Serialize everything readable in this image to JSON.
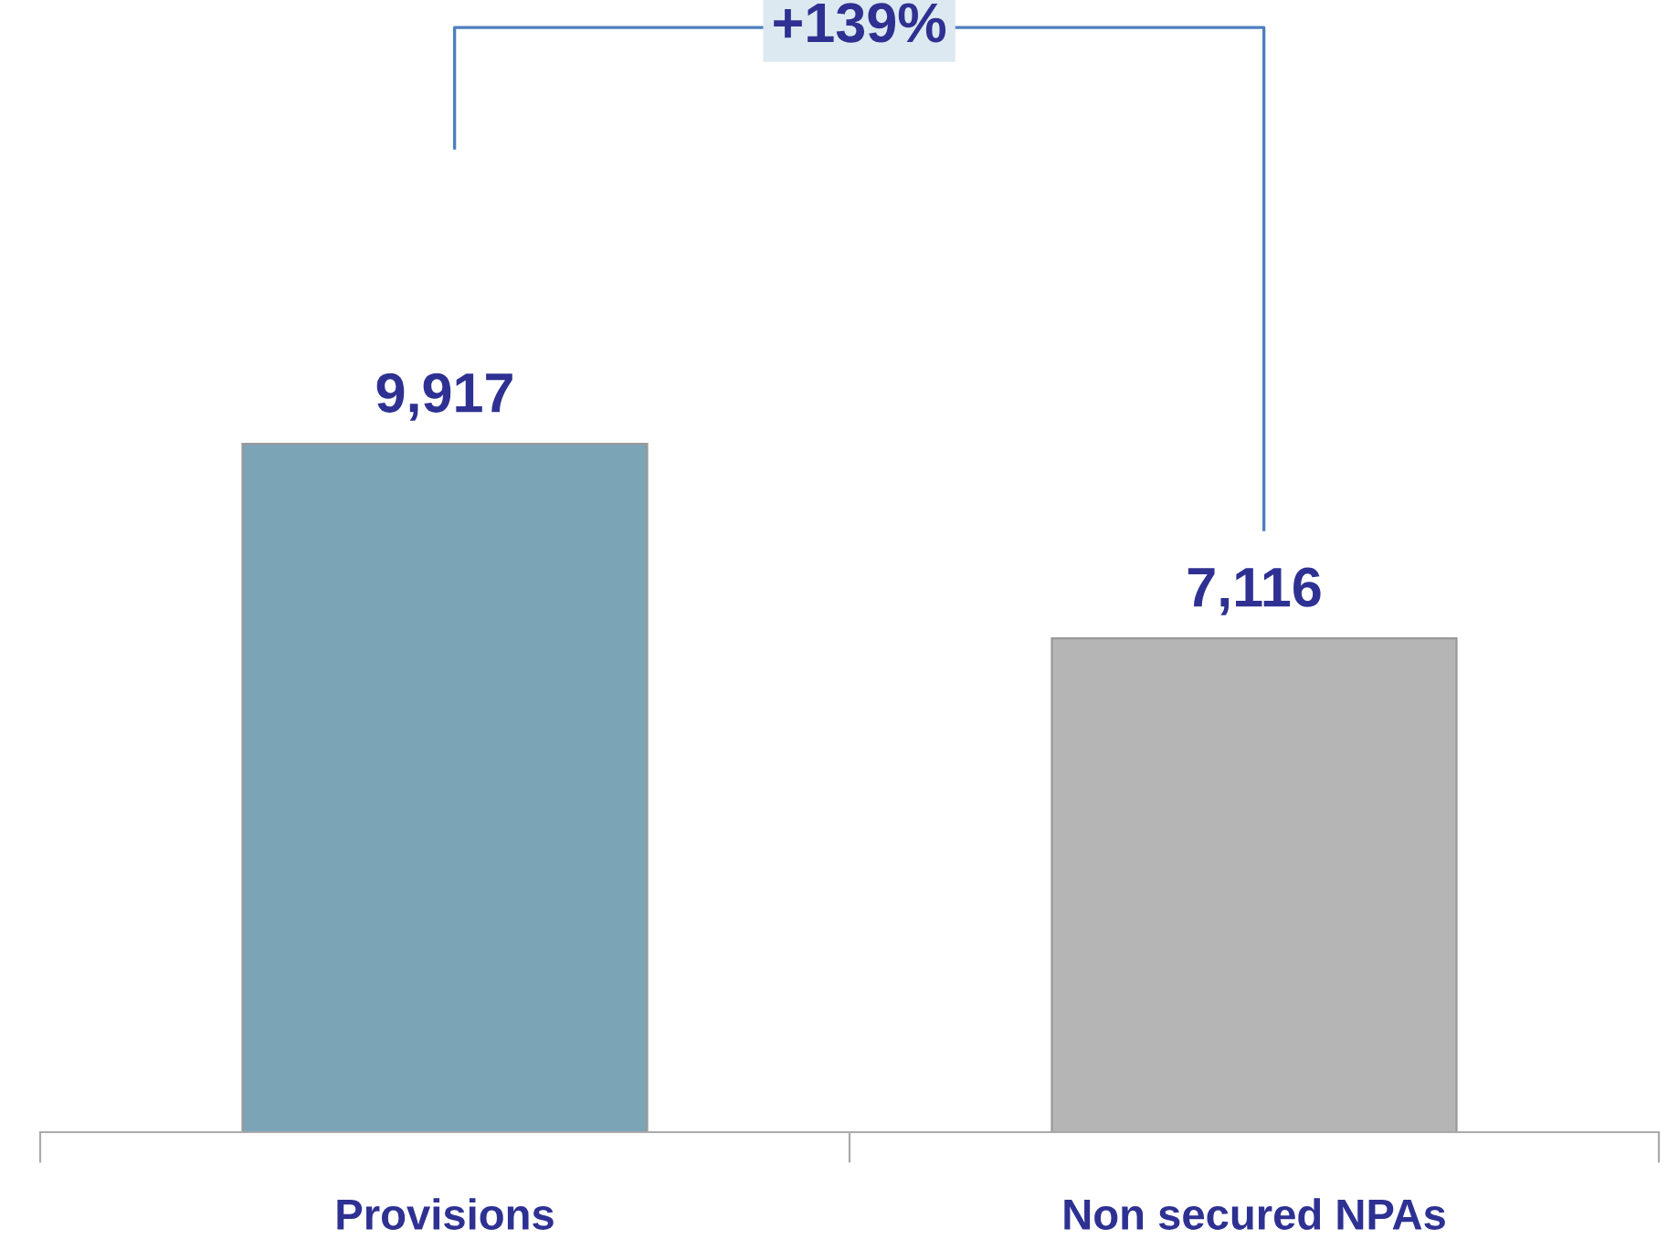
{
  "chart_data": {
    "type": "bar",
    "categories": [
      "Provisions",
      "Non secured NPAs"
    ],
    "values": [
      9917,
      7116
    ],
    "colors": [
      "#7ba5b7",
      "#b5b5b5"
    ],
    "data_labels": true,
    "value_labels": [
      "9,917",
      "7,116"
    ],
    "annotations": [
      "+139%"
    ],
    "grid": false,
    "legend": false
  }
}
